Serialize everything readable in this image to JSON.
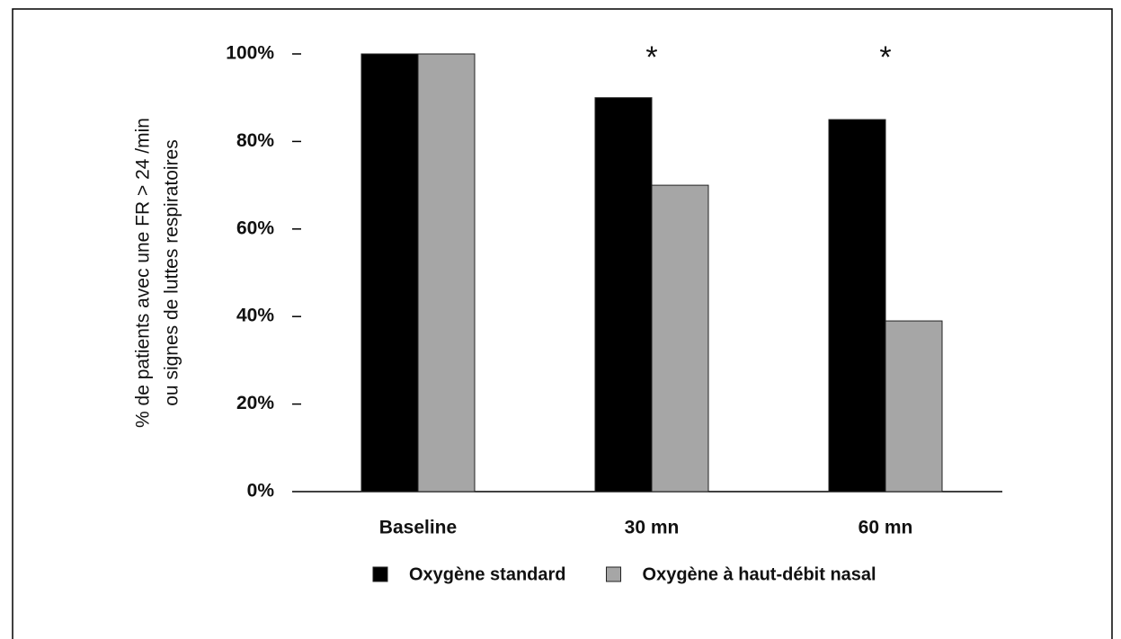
{
  "chart_data": {
    "type": "bar",
    "ylabel": [
      "% de patients avec une FR > 24 /min",
      "ou signes de luttes respiratoires"
    ],
    "categories": [
      "Baseline",
      "30 mn",
      "60 mn"
    ],
    "series": [
      {
        "name": "Oxygène standard",
        "color": "#000000",
        "values": [
          100,
          90,
          85
        ]
      },
      {
        "name": "Oxygène à haut-débit nasal",
        "color": "#a6a6a6",
        "values": [
          100,
          70,
          39
        ]
      }
    ],
    "annotations": [
      {
        "text": "*",
        "category": "30 mn"
      },
      {
        "text": "*",
        "category": "60 mn"
      }
    ],
    "ylim": [
      0,
      100
    ],
    "yticks": [
      {
        "value": 0,
        "label": "0%"
      },
      {
        "value": 20,
        "label": "20%"
      },
      {
        "value": 40,
        "label": "40%"
      },
      {
        "value": 60,
        "label": "60%"
      },
      {
        "value": 80,
        "label": "80%"
      },
      {
        "value": 100,
        "label": "100%"
      }
    ],
    "grid": false,
    "legend": "bottom"
  }
}
